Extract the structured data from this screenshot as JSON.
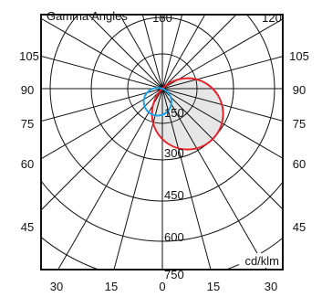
{
  "chart_data": {
    "type": "polar",
    "title": "Gamma Angles",
    "unit_label": "cd/klm",
    "ring_values": [
      150,
      300,
      450,
      600,
      750
    ],
    "ring_labels": [
      "150",
      "300",
      "450",
      "600",
      "750"
    ],
    "rmax": 750,
    "top_labels": [
      "180",
      "120"
    ],
    "left_labels": [
      "105",
      "90",
      "75",
      "60",
      "45"
    ],
    "right_labels": [
      "105",
      "90",
      "75",
      "60",
      "45"
    ],
    "bottom_labels": [
      "30",
      "15",
      "0",
      "15",
      "30"
    ],
    "spoke_step_deg": 15,
    "colors": {
      "grid": "#111111",
      "series_red": "#e8202a",
      "series_blue": "#1ea0e6",
      "fill": "#e6e6e6",
      "frame": "#111111"
    },
    "series": [
      {
        "color": "red",
        "shape": "circle-through-origin",
        "peak_value": 300,
        "peak_direction_deg": 135
      },
      {
        "color": "blue",
        "shape": "circle-through-origin",
        "peak_value": 120,
        "peak_direction_deg": 200
      }
    ]
  }
}
